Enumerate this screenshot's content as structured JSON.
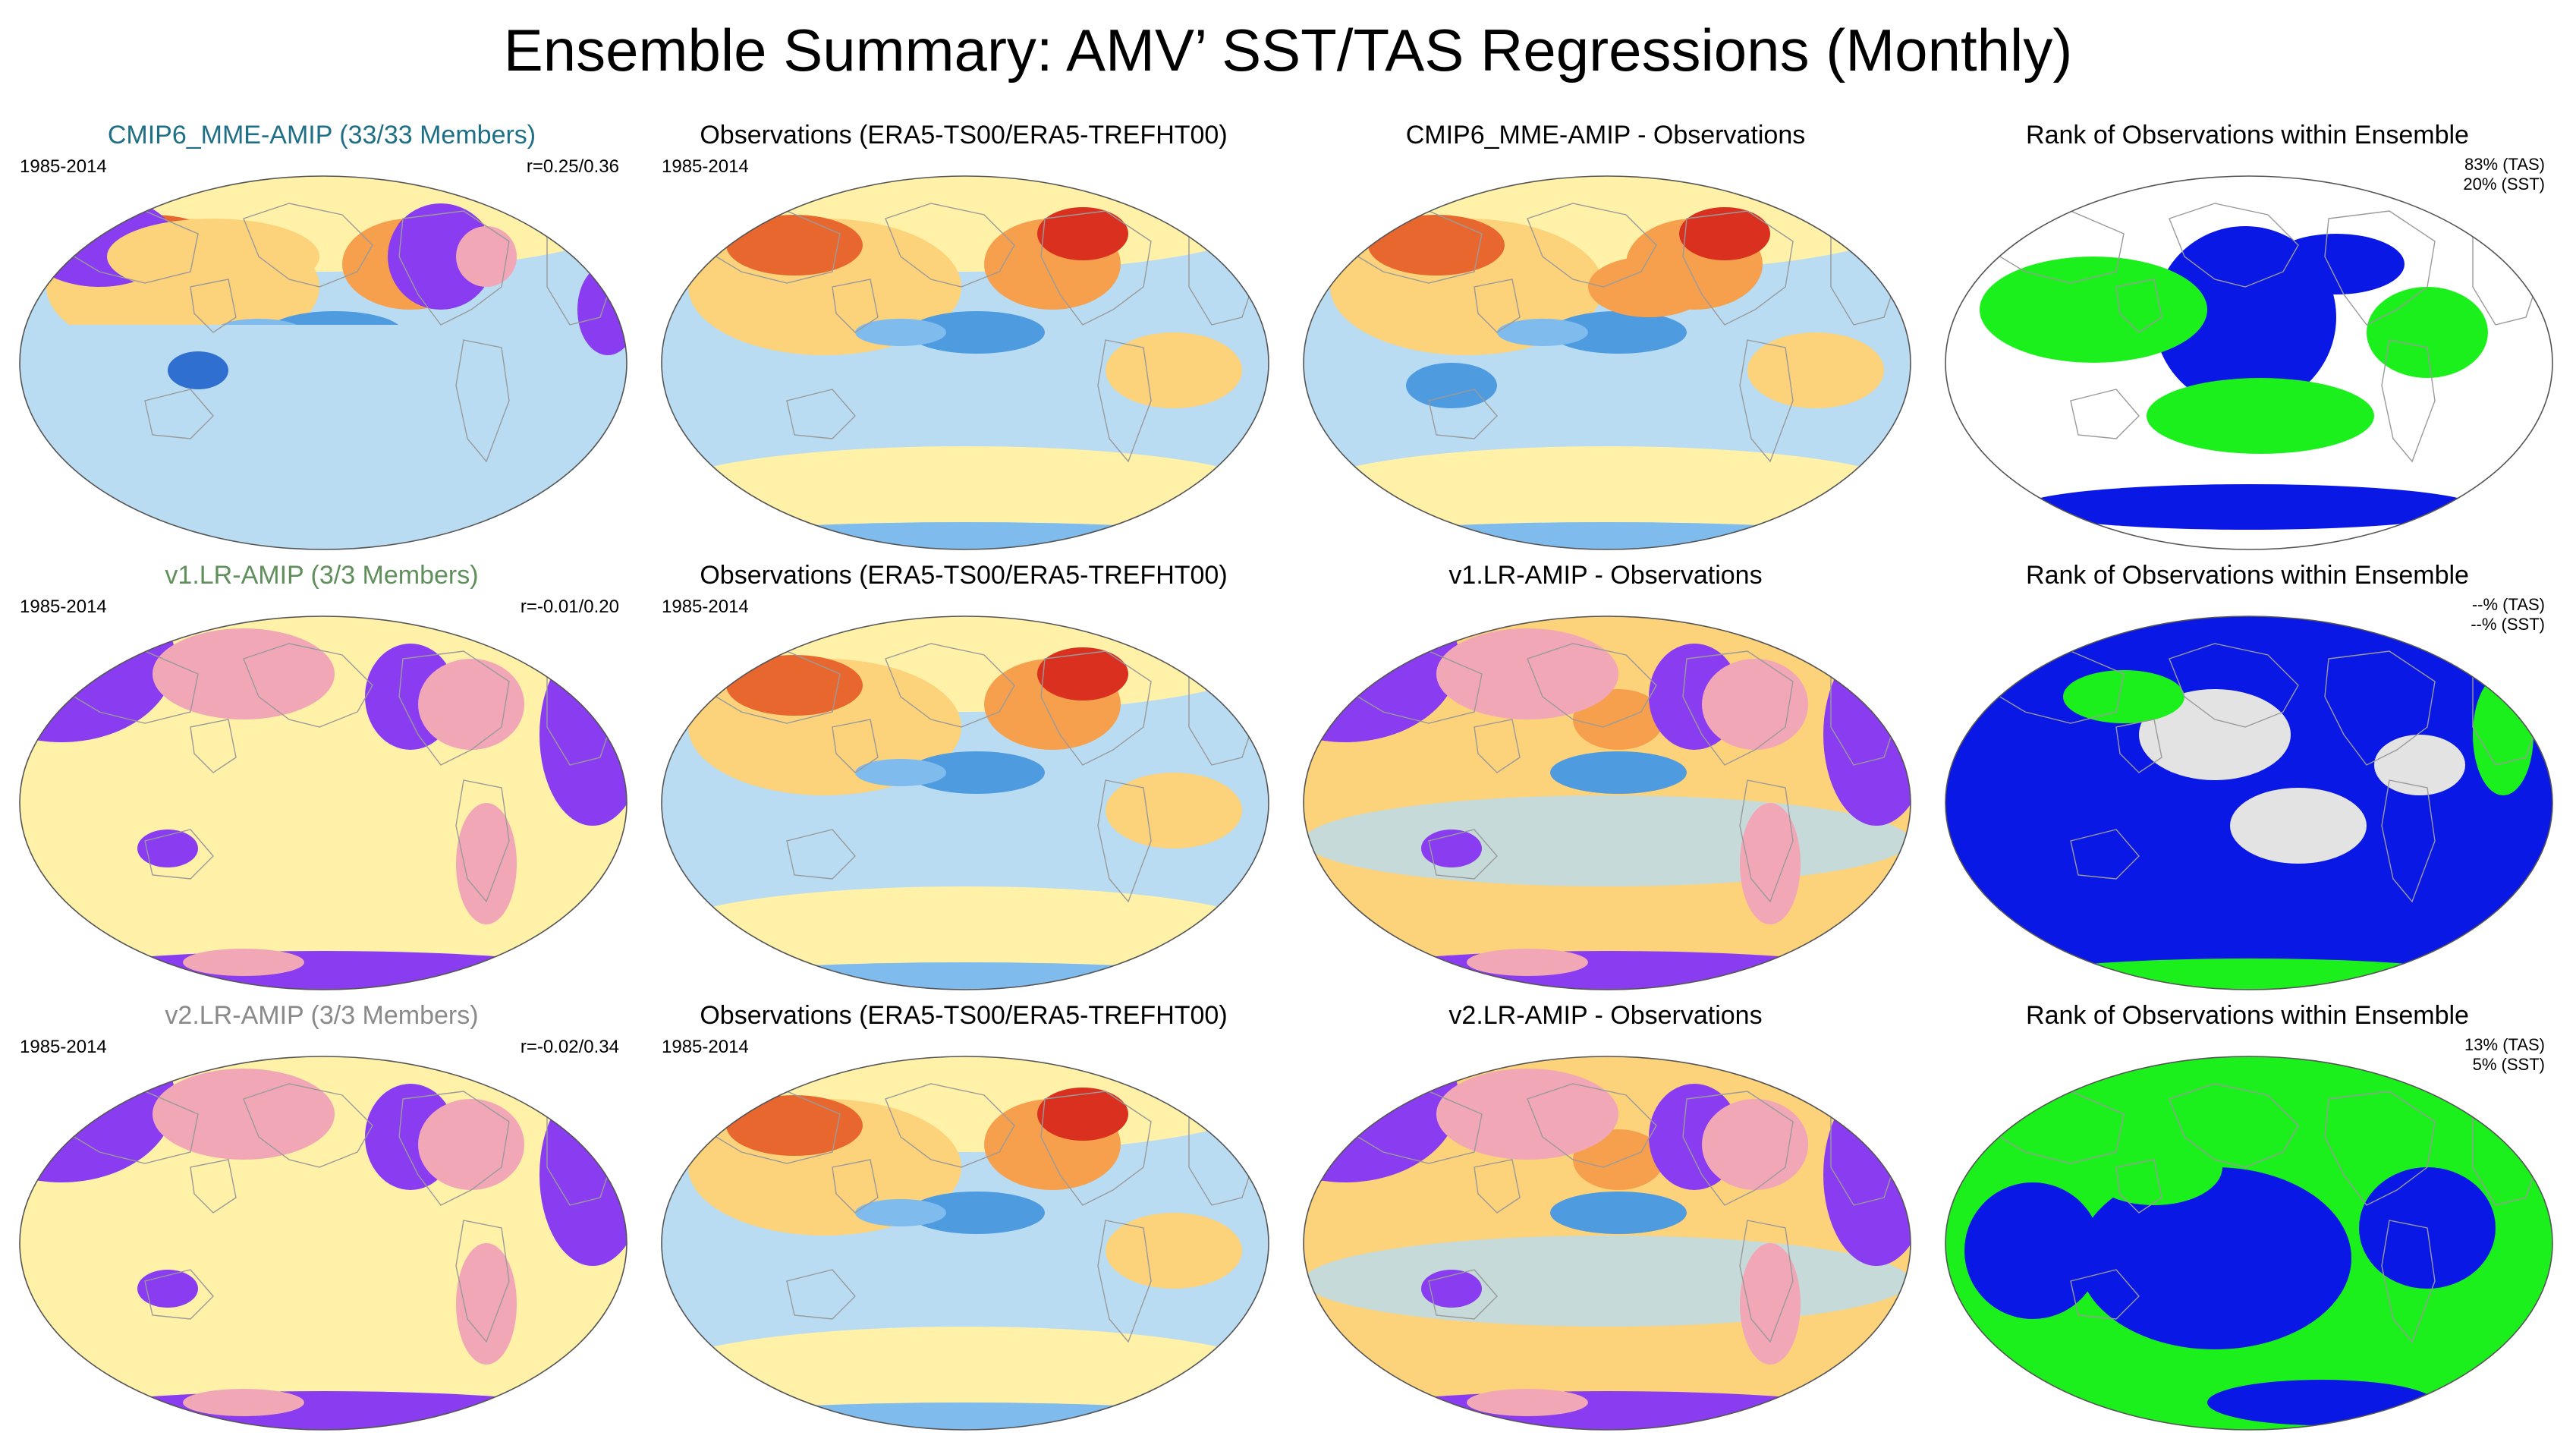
{
  "figure": {
    "title": "Ensemble Summary: AMV’ SST/TAS Regressions (Monthly)"
  },
  "colors": {
    "cmip6_title": "#1f6f86",
    "v1_title": "#5f8f5a",
    "v2_title": "#8a8a8a",
    "obs_title": "#000000",
    "warm": "#e74b1f",
    "cool": "#4f9be0",
    "neutral": "#fff1a8",
    "purple": "#8a3cf0",
    "pink": "#f2a7b6",
    "rank_blue": "#0a18e6",
    "rank_green": "#1cf01c",
    "rank_gray": "#e3e3e3"
  },
  "rows": [
    {
      "model": {
        "title": "CMIP6_MME-AMIP (33/33 Members)",
        "period": "1985-2014",
        "corr": "r=0.25/0.36",
        "icon": "global-map-icon"
      },
      "obs": {
        "title": "Observations (ERA5-TS00/ERA5-TREFHT00)",
        "period": "1985-2014",
        "icon": "global-map-icon"
      },
      "diff": {
        "title": "CMIP6_MME-AMIP - Observations",
        "icon": "global-map-icon"
      },
      "rank": {
        "title": "Rank of Observations within Ensemble",
        "tas": "83% (TAS)",
        "sst": "20% (SST)",
        "icon": "global-map-icon"
      }
    },
    {
      "model": {
        "title": "v1.LR-AMIP (3/3 Members)",
        "period": "1985-2014",
        "corr": "r=-0.01/0.20",
        "icon": "global-map-icon"
      },
      "obs": {
        "title": "Observations (ERA5-TS00/ERA5-TREFHT00)",
        "period": "1985-2014",
        "icon": "global-map-icon"
      },
      "diff": {
        "title": "v1.LR-AMIP - Observations",
        "icon": "global-map-icon"
      },
      "rank": {
        "title": "Rank of Observations within Ensemble",
        "tas": "--% (TAS)",
        "sst": "--% (SST)",
        "icon": "global-map-icon"
      }
    },
    {
      "model": {
        "title": "v2.LR-AMIP (3/3 Members)",
        "period": "1985-2014",
        "corr": "r=-0.02/0.34",
        "icon": "global-map-icon"
      },
      "obs": {
        "title": "Observations (ERA5-TS00/ERA5-TREFHT00)",
        "period": "1985-2014",
        "icon": "global-map-icon"
      },
      "diff": {
        "title": "v2.LR-AMIP - Observations",
        "icon": "global-map-icon"
      },
      "rank": {
        "title": "Rank of Observations within Ensemble",
        "tas": "13% (TAS)",
        "sst": "5% (SST)",
        "icon": "global-map-icon"
      }
    }
  ]
}
